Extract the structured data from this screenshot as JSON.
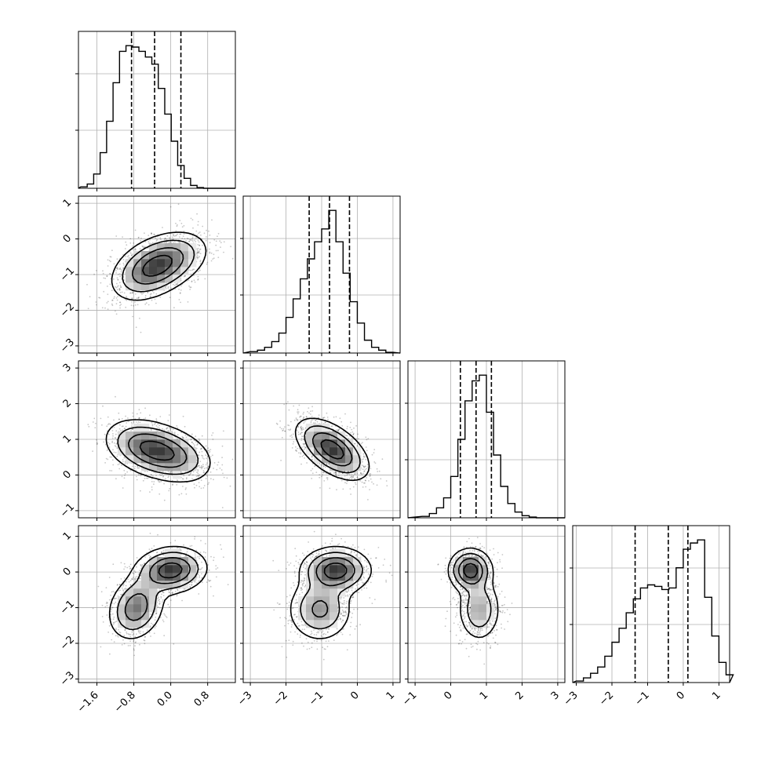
{
  "chart_data": {
    "type": "corner",
    "grid": true,
    "parameters": [
      {
        "range": [
          -2.0,
          1.4
        ],
        "ticks": [
          -1.6,
          -0.8,
          0.0,
          0.8
        ],
        "tick_labels": [
          "−1.6",
          "−0.8",
          "0.0",
          "0.8"
        ],
        "quantiles": [
          -0.85,
          -0.35,
          0.22
        ],
        "hist_x_start": -1.95,
        "hist_bin_width": 0.14,
        "hist_counts": [
          0.01,
          0.03,
          0.1,
          0.25,
          0.47,
          0.74,
          0.96,
          1.0,
          0.99,
          0.96,
          0.92,
          0.87,
          0.7,
          0.52,
          0.33,
          0.16,
          0.07,
          0.02,
          0.005,
          0.0
        ]
      },
      {
        "range": [
          -3.2,
          1.2
        ],
        "ticks": [
          -3,
          -2,
          -1,
          0,
          1
        ],
        "tick_labels": [
          "−3",
          "−2",
          "−1",
          "0",
          "1"
        ],
        "quantiles": [
          -1.35,
          -0.78,
          -0.22
        ],
        "hist_x_start": -3.0,
        "hist_bin_width": 0.2,
        "hist_counts": [
          0.01,
          0.02,
          0.04,
          0.08,
          0.14,
          0.25,
          0.38,
          0.52,
          0.66,
          0.78,
          0.87,
          1.0,
          0.78,
          0.56,
          0.36,
          0.21,
          0.09,
          0.04,
          0.02,
          0.005
        ]
      },
      {
        "range": [
          -1.2,
          3.2
        ],
        "ticks": [
          -1,
          0,
          1,
          2,
          3
        ],
        "tick_labels": [
          "−1",
          "0",
          "1",
          "2",
          "3"
        ],
        "quantiles": [
          0.27,
          0.71,
          1.14
        ],
        "hist_x_start": -0.8,
        "hist_bin_width": 0.2,
        "hist_counts": [
          0.01,
          0.03,
          0.07,
          0.14,
          0.29,
          0.55,
          0.82,
          0.96,
          1.0,
          0.74,
          0.44,
          0.22,
          0.1,
          0.04,
          0.015,
          0.005,
          0.0
        ]
      },
      {
        "range": [
          -3.1,
          1.3
        ],
        "ticks": [
          -3,
          -2,
          -1,
          0,
          1
        ],
        "tick_labels": [
          "−3",
          "−2",
          "−1",
          "0",
          "1"
        ],
        "quantiles": [
          -1.35,
          -0.42,
          0.13
        ],
        "hist_x_start": -3.0,
        "hist_bin_width": 0.2,
        "hist_counts": [
          0.01,
          0.03,
          0.06,
          0.1,
          0.17,
          0.26,
          0.35,
          0.45,
          0.54,
          0.61,
          0.63,
          0.62,
          0.6,
          0.61,
          0.74,
          0.86,
          0.9,
          0.92,
          0.55,
          0.3,
          0.13,
          0.05
        ]
      }
    ],
    "pairs": [
      {
        "row": 1,
        "col": 0,
        "components": [
          {
            "mean": [
              -0.5,
              -0.9
            ],
            "sd": [
              0.42,
              0.44
            ],
            "rho": 0.35,
            "weight": 0.5
          },
          {
            "mean": [
              -0.05,
              -0.6
            ],
            "sd": [
              0.45,
              0.42
            ],
            "rho": 0.35,
            "weight": 0.5
          }
        ]
      },
      {
        "row": 2,
        "col": 0,
        "components": [
          {
            "mean": [
              -0.55,
              0.78
            ],
            "sd": [
              0.45,
              0.4
            ],
            "rho": -0.3,
            "weight": 0.55
          },
          {
            "mean": [
              0.05,
              0.55
            ],
            "sd": [
              0.45,
              0.4
            ],
            "rho": -0.3,
            "weight": 0.45
          }
        ]
      },
      {
        "row": 2,
        "col": 1,
        "components": [
          {
            "mean": [
              -0.7,
              0.72
            ],
            "sd": [
              0.5,
              0.42
            ],
            "rho": -0.55,
            "weight": 1.0
          }
        ]
      },
      {
        "row": 3,
        "col": 0,
        "components": [
          {
            "mean": [
              0.0,
              0.05
            ],
            "sd": [
              0.38,
              0.32
            ],
            "rho": 0.1,
            "weight": 0.55
          },
          {
            "mean": [
              -0.75,
              -1.0
            ],
            "sd": [
              0.3,
              0.45
            ],
            "rho": 0.2,
            "weight": 0.45
          }
        ]
      },
      {
        "row": 3,
        "col": 1,
        "components": [
          {
            "mean": [
              -0.6,
              0.05
            ],
            "sd": [
              0.48,
              0.32
            ],
            "rho": 0.0,
            "weight": 0.55
          },
          {
            "mean": [
              -1.05,
              -1.05
            ],
            "sd": [
              0.45,
              0.45
            ],
            "rho": 0.0,
            "weight": 0.45
          }
        ]
      },
      {
        "row": 3,
        "col": 2,
        "components": [
          {
            "mean": [
              0.55,
              0.05
            ],
            "sd": [
              0.3,
              0.3
            ],
            "rho": 0.0,
            "weight": 0.55
          },
          {
            "mean": [
              0.8,
              -1.05
            ],
            "sd": [
              0.3,
              0.45
            ],
            "rho": 0.0,
            "weight": 0.45
          }
        ]
      }
    ]
  }
}
